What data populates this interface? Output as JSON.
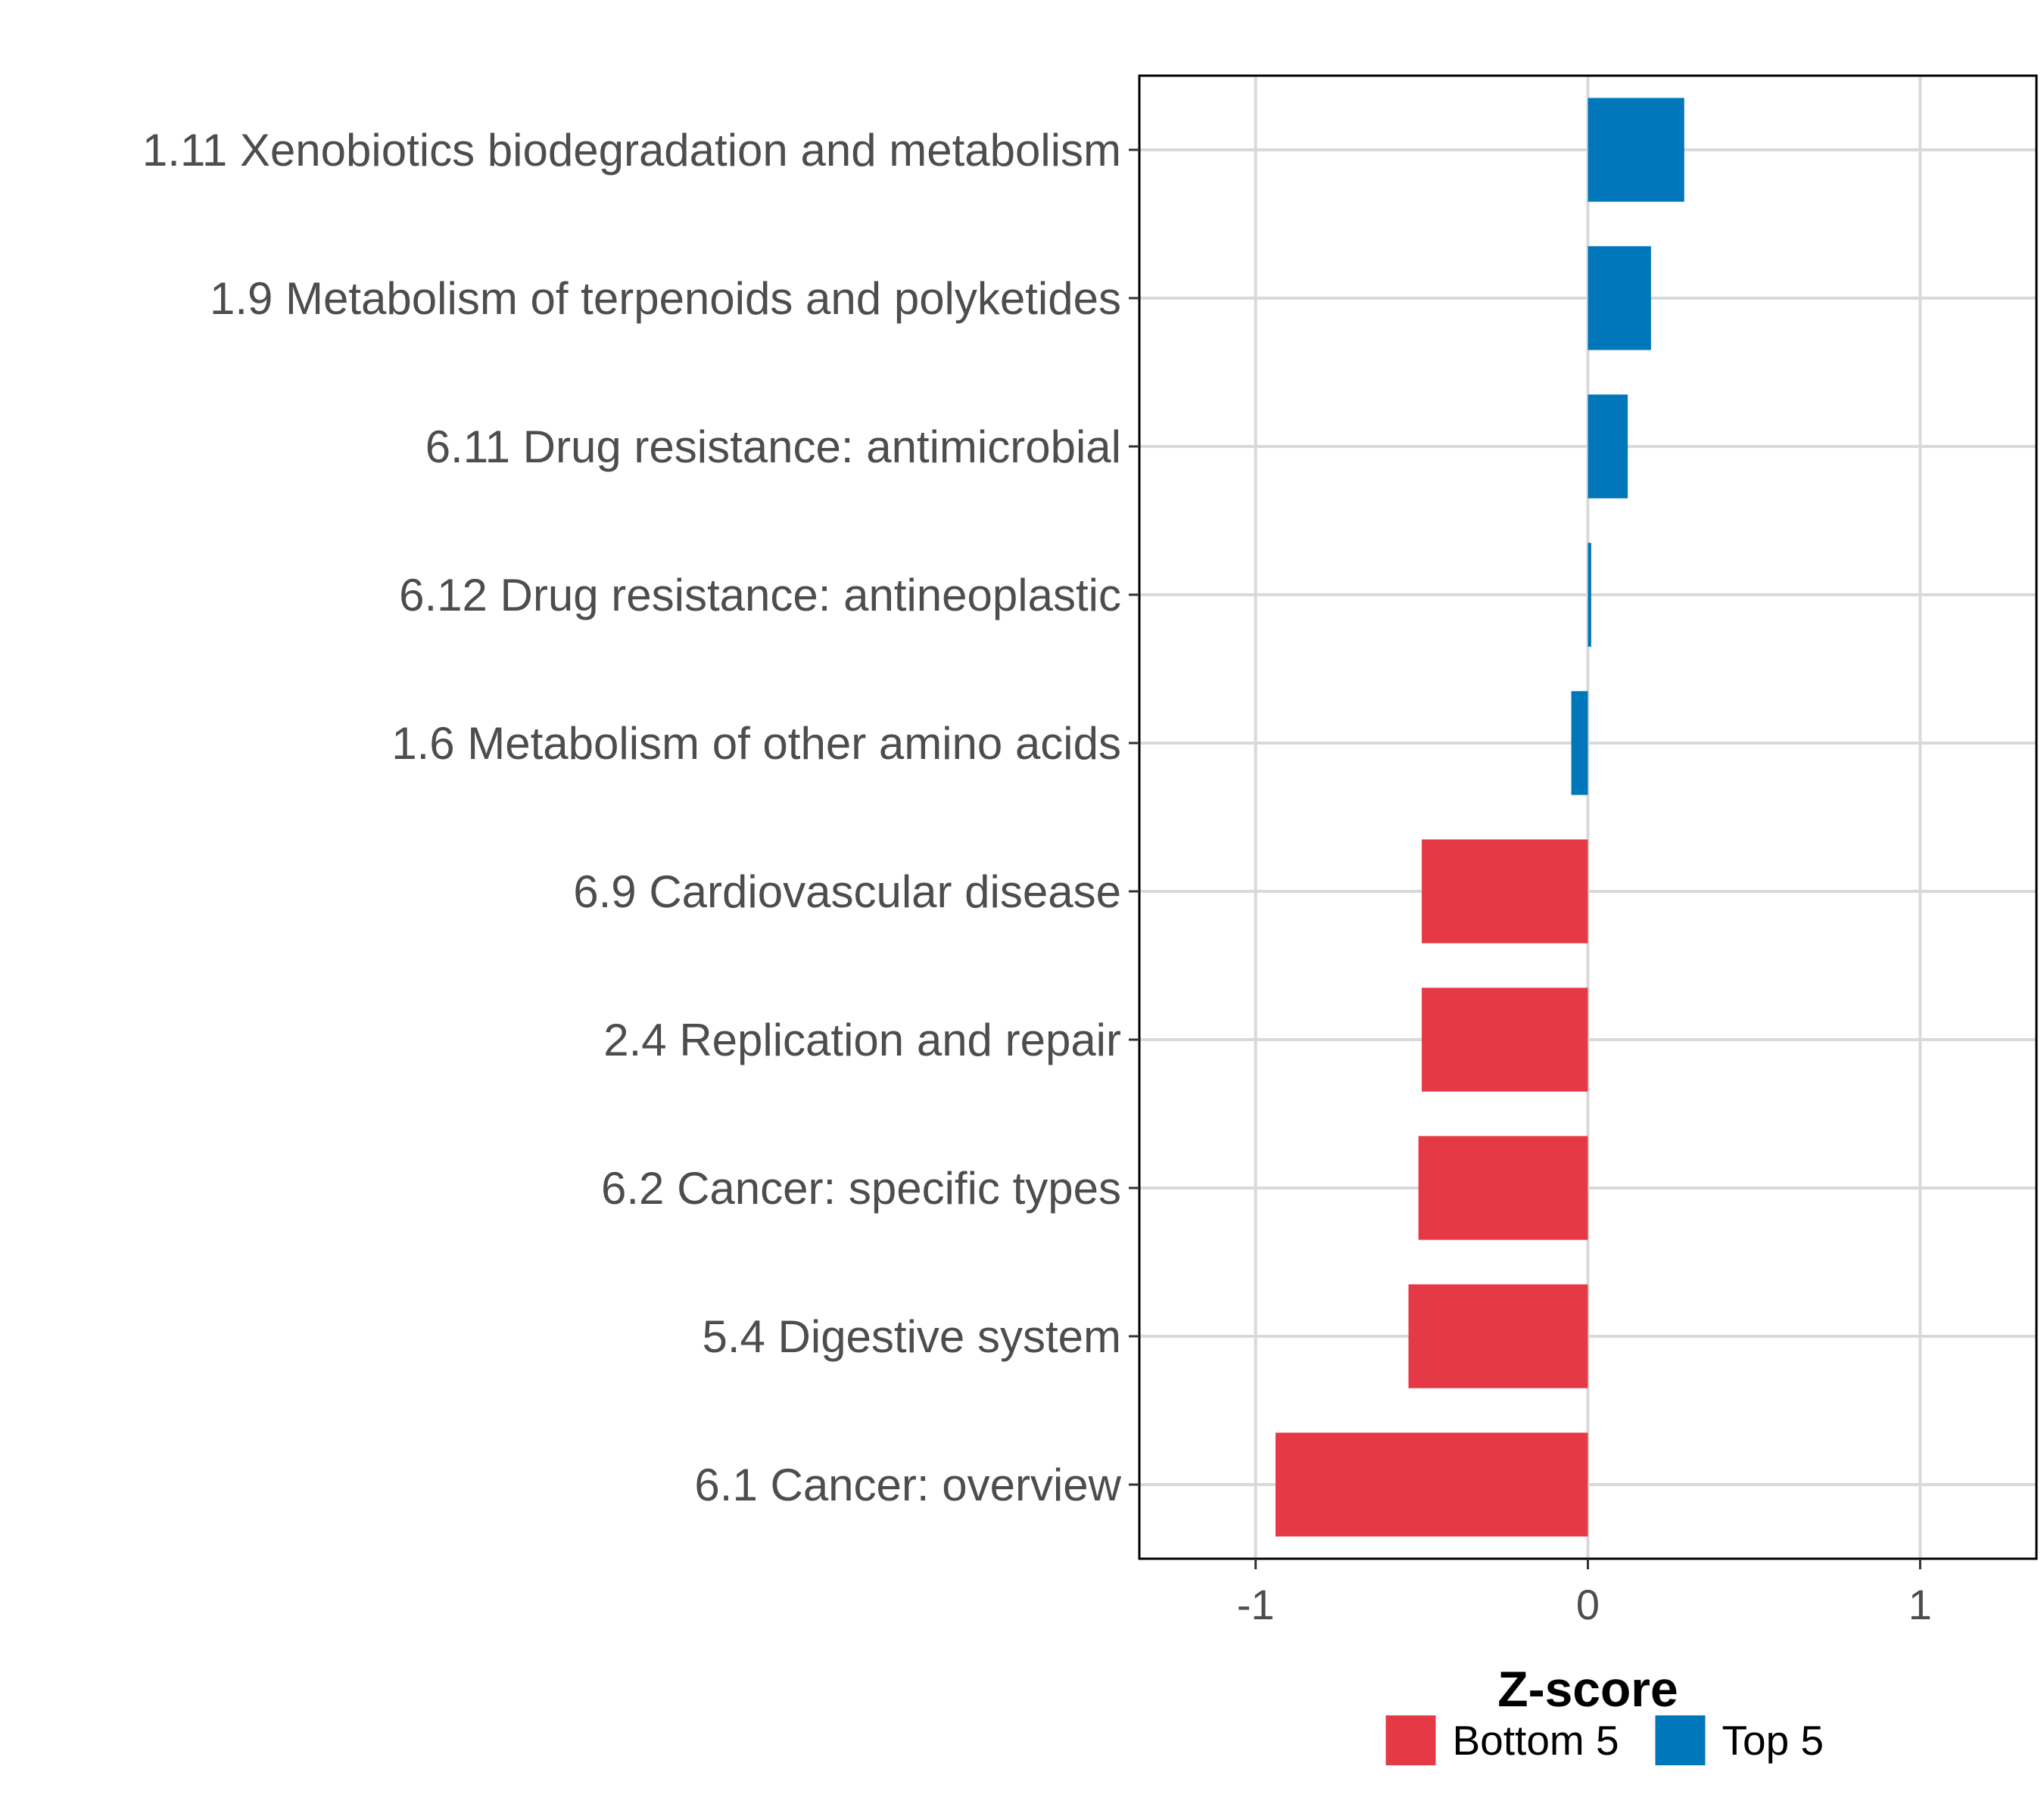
{
  "chart_data": {
    "type": "bar",
    "orientation": "horizontal",
    "categories": [
      "1.11 Xenobiotics biodegradation and metabolism",
      "1.9 Metabolism of terpenoids and polyketides",
      "6.11 Drug resistance: antimicrobial",
      "6.12 Drug resistance: antineoplastic",
      "1.6 Metabolism of other amino acids",
      "6.9 Cardiovascular disease",
      "2.4 Replication and repair",
      "6.2 Cancer: specific types",
      "5.4 Digestive system",
      "6.1 Cancer: overview"
    ],
    "values": [
      0.29,
      0.19,
      0.12,
      0.01,
      -0.05,
      -0.5,
      -0.5,
      -0.51,
      -0.54,
      -0.94
    ],
    "groups": [
      "Top 5",
      "Top 5",
      "Top 5",
      "Top 5",
      "Top 5",
      "Bottom 5",
      "Bottom 5",
      "Bottom 5",
      "Bottom 5",
      "Bottom 5"
    ],
    "xlabel": "Z-score",
    "ylabel": "",
    "xlim": [
      -1.35,
      1.35
    ],
    "xticks": [
      -1,
      0,
      1
    ],
    "xtick_labels": [
      "-1",
      "0",
      "1"
    ],
    "grid": true,
    "legend": {
      "position": "bottom",
      "entries": [
        {
          "label": "Bottom 5",
          "color": "#E63946"
        },
        {
          "label": "Top 5",
          "color": "#0077BB"
        }
      ]
    }
  }
}
